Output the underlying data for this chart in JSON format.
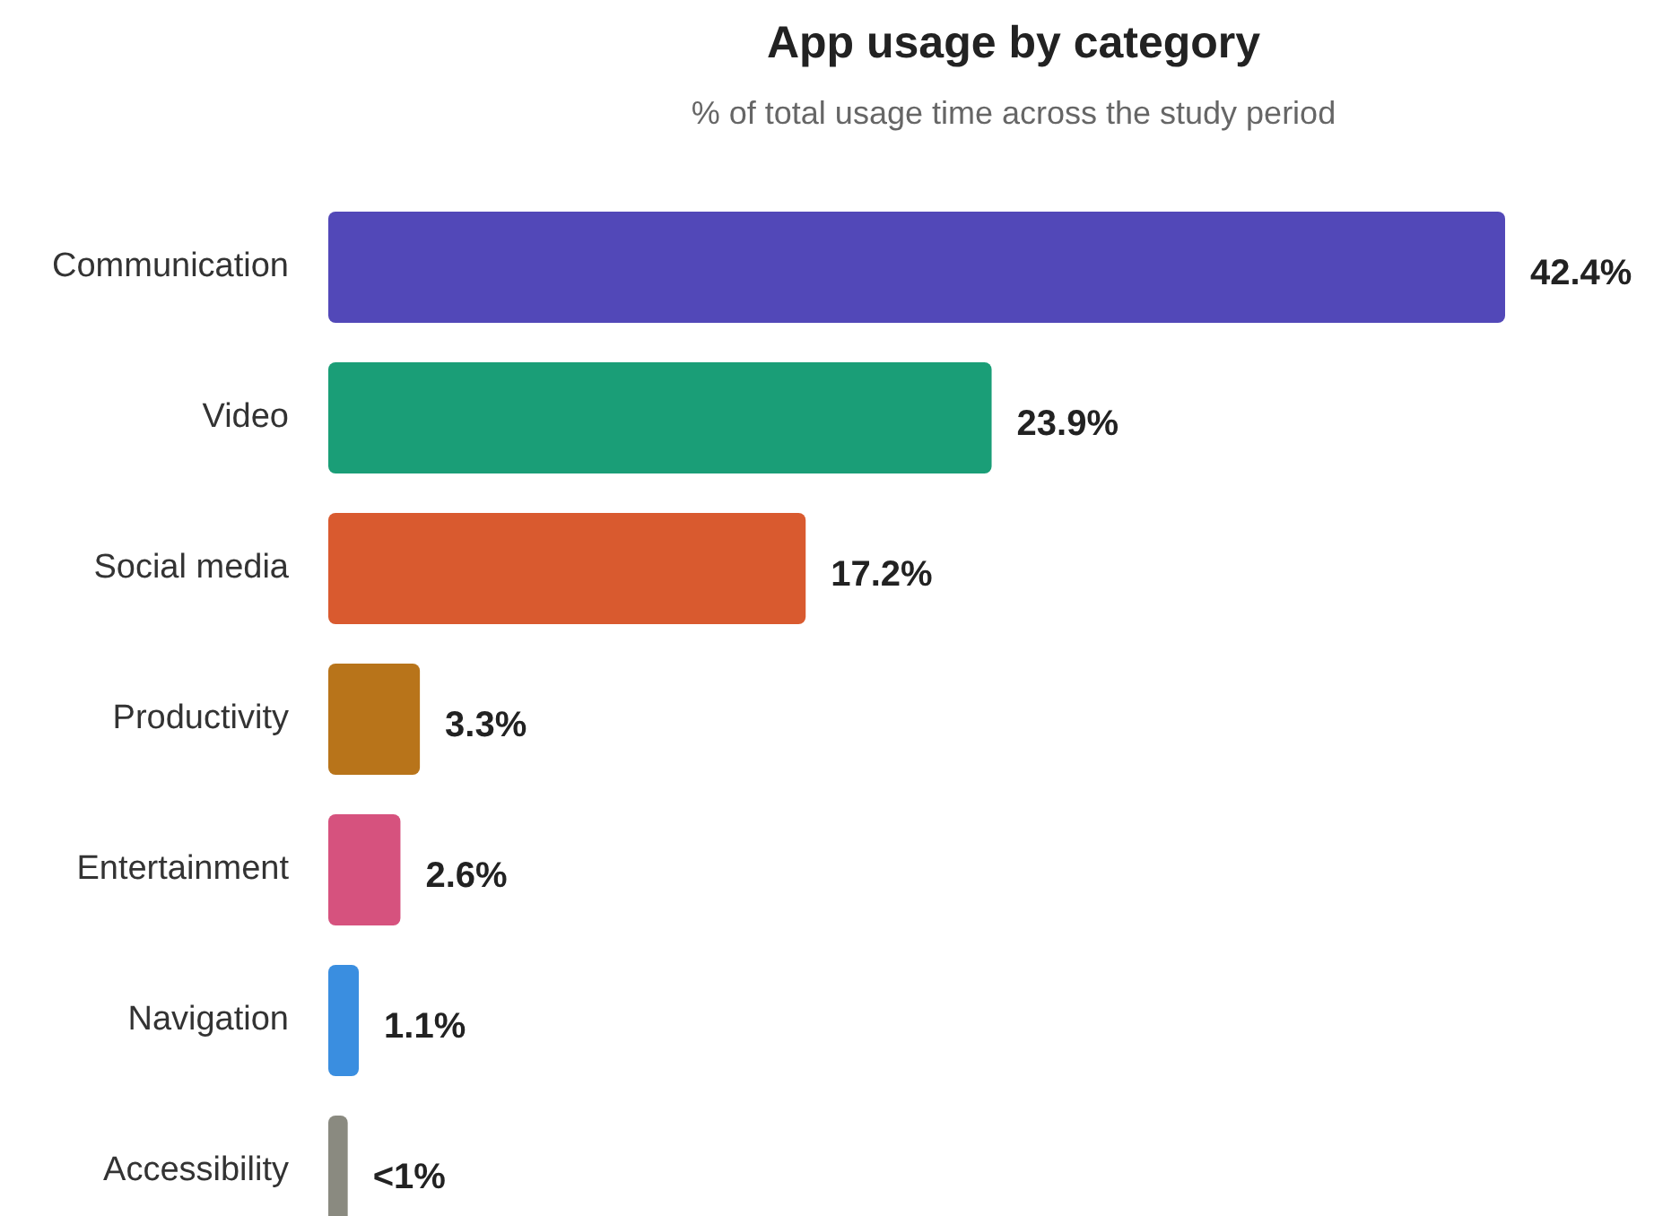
{
  "chart_data": {
    "type": "bar",
    "orientation": "horizontal",
    "title": "App usage by category",
    "subtitle": "% of total usage time across the study period",
    "categories": [
      "Communication",
      "Video",
      "Social media",
      "Productivity",
      "Entertainment",
      "Navigation",
      "Accessibility"
    ],
    "values": [
      42.4,
      23.9,
      17.2,
      3.3,
      2.6,
      1.1,
      0.7
    ],
    "colors": [
      "#5248b8",
      "#1a9e77",
      "#d95a2f",
      "#b8741a",
      "#d6527e",
      "#3a8ee0",
      "#8a8a80"
    ],
    "value_labels": [
      "42.4%",
      "23.9%",
      "17.2%",
      "3.3%",
      "2.6%",
      "1.1%",
      "<1%"
    ]
  }
}
